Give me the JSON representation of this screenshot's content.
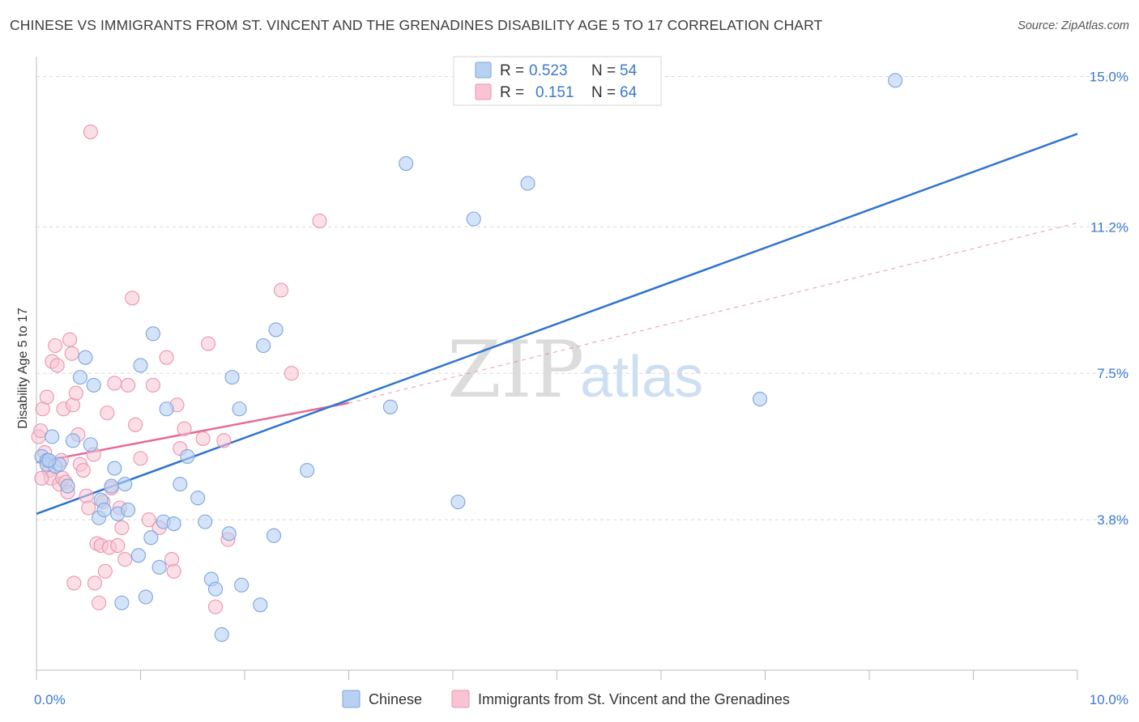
{
  "title": "CHINESE VS IMMIGRANTS FROM ST. VINCENT AND THE GRENADINES DISABILITY AGE 5 TO 17 CORRELATION CHART",
  "source": "Source: ZipAtlas.com",
  "watermark": {
    "zip": "ZIP",
    "atlas": "atlas"
  },
  "colors": {
    "chinese_fill": "#b8d0f2",
    "chinese_stroke": "#7aa6e0",
    "chinese_line": "#2f74d0",
    "svg_fill": "#f8c4d4",
    "svg_stroke": "#ec93ae",
    "svg_line": "#e56b94",
    "tick_label": "#3b78d0",
    "grid": "#d9d9d9"
  },
  "legend": {
    "rows": [
      {
        "r_label": "R =",
        "r_value": "0.523",
        "n_label": "N =",
        "n_value": "54"
      },
      {
        "r_label": "R =",
        "r_value": "0.151",
        "n_label": "N =",
        "n_value": "64"
      }
    ]
  },
  "chart_data": {
    "type": "scatter",
    "title": "CHINESE VS IMMIGRANTS FROM ST. VINCENT AND THE GRENADINES DISABILITY AGE 5 TO 17 CORRELATION CHART",
    "xlabel": "",
    "ylabel": "Disability Age 5 to 17",
    "xlim": [
      0,
      10
    ],
    "ylim": [
      0.0,
      15.5
    ],
    "x_tick_labels": [
      "0.0%",
      "10.0%"
    ],
    "y_ticks": [
      3.8,
      7.5,
      11.2,
      15.0
    ],
    "y_tick_labels": [
      "3.8%",
      "7.5%",
      "11.2%",
      "15.0%"
    ],
    "grid": true,
    "legend_position": "top-center",
    "series": [
      {
        "name": "Chinese",
        "r": 0.523,
        "n": 54,
        "trend": {
          "x": [
            0.0,
            10.0
          ],
          "y": [
            3.95,
            13.55
          ]
        },
        "points": [
          [
            0.05,
            5.4
          ],
          [
            0.1,
            5.3
          ],
          [
            0.1,
            5.2
          ],
          [
            0.15,
            5.9
          ],
          [
            0.18,
            5.15
          ],
          [
            0.22,
            5.2
          ],
          [
            0.3,
            4.65
          ],
          [
            0.35,
            5.8
          ],
          [
            0.42,
            7.4
          ],
          [
            0.47,
            7.9
          ],
          [
            0.52,
            5.7
          ],
          [
            0.55,
            7.2
          ],
          [
            0.6,
            3.85
          ],
          [
            0.62,
            4.3
          ],
          [
            0.65,
            4.05
          ],
          [
            0.72,
            4.65
          ],
          [
            0.75,
            5.1
          ],
          [
            0.78,
            3.95
          ],
          [
            0.82,
            1.7
          ],
          [
            0.85,
            4.7
          ],
          [
            0.88,
            4.05
          ],
          [
            0.98,
            2.9
          ],
          [
            1.0,
            7.7
          ],
          [
            1.05,
            1.85
          ],
          [
            1.1,
            3.35
          ],
          [
            1.12,
            8.5
          ],
          [
            1.18,
            2.6
          ],
          [
            1.22,
            3.75
          ],
          [
            1.25,
            6.6
          ],
          [
            1.32,
            3.7
          ],
          [
            1.38,
            4.7
          ],
          [
            1.45,
            5.4
          ],
          [
            1.55,
            4.35
          ],
          [
            1.62,
            3.75
          ],
          [
            1.68,
            2.3
          ],
          [
            1.72,
            2.05
          ],
          [
            1.78,
            0.9
          ],
          [
            1.85,
            3.45
          ],
          [
            1.88,
            7.4
          ],
          [
            1.95,
            6.6
          ],
          [
            1.97,
            2.15
          ],
          [
            2.15,
            1.65
          ],
          [
            2.18,
            8.2
          ],
          [
            2.28,
            3.4
          ],
          [
            2.3,
            8.6
          ],
          [
            2.6,
            5.05
          ],
          [
            3.4,
            6.65
          ],
          [
            3.55,
            12.8
          ],
          [
            4.2,
            11.4
          ],
          [
            4.05,
            4.25
          ],
          [
            4.72,
            12.3
          ],
          [
            6.95,
            6.85
          ],
          [
            8.25,
            14.9
          ],
          [
            0.12,
            5.3
          ]
        ]
      },
      {
        "name": "Immigrants from St. Vincent and the Grenadines",
        "r": 0.151,
        "n": 64,
        "trend": {
          "x": [
            0.0,
            3.0
          ],
          "y": [
            5.25,
            6.75
          ]
        },
        "trend_extension": {
          "x": [
            3.0,
            10.0
          ],
          "y": [
            6.75,
            11.3
          ]
        },
        "points": [
          [
            0.02,
            5.9
          ],
          [
            0.04,
            6.05
          ],
          [
            0.06,
            6.6
          ],
          [
            0.08,
            5.5
          ],
          [
            0.1,
            6.9
          ],
          [
            0.12,
            5.05
          ],
          [
            0.14,
            4.85
          ],
          [
            0.15,
            7.8
          ],
          [
            0.18,
            8.2
          ],
          [
            0.2,
            7.7
          ],
          [
            0.22,
            4.7
          ],
          [
            0.24,
            5.3
          ],
          [
            0.25,
            4.85
          ],
          [
            0.26,
            6.6
          ],
          [
            0.28,
            4.75
          ],
          [
            0.3,
            4.5
          ],
          [
            0.32,
            8.35
          ],
          [
            0.34,
            8.0
          ],
          [
            0.35,
            6.7
          ],
          [
            0.36,
            2.2
          ],
          [
            0.38,
            7.0
          ],
          [
            0.4,
            5.95
          ],
          [
            0.42,
            5.2
          ],
          [
            0.45,
            5.05
          ],
          [
            0.48,
            4.4
          ],
          [
            0.5,
            4.1
          ],
          [
            0.52,
            13.6
          ],
          [
            0.55,
            5.45
          ],
          [
            0.56,
            2.2
          ],
          [
            0.58,
            3.2
          ],
          [
            0.6,
            1.7
          ],
          [
            0.62,
            3.15
          ],
          [
            0.64,
            4.25
          ],
          [
            0.66,
            2.5
          ],
          [
            0.68,
            6.5
          ],
          [
            0.7,
            3.1
          ],
          [
            0.72,
            4.6
          ],
          [
            0.75,
            7.25
          ],
          [
            0.78,
            3.15
          ],
          [
            0.8,
            4.1
          ],
          [
            0.82,
            3.6
          ],
          [
            0.85,
            2.8
          ],
          [
            0.88,
            7.2
          ],
          [
            0.92,
            9.4
          ],
          [
            0.95,
            6.2
          ],
          [
            1.0,
            5.35
          ],
          [
            1.08,
            3.8
          ],
          [
            1.12,
            7.2
          ],
          [
            1.18,
            3.6
          ],
          [
            1.25,
            7.9
          ],
          [
            1.3,
            2.8
          ],
          [
            1.32,
            2.5
          ],
          [
            1.35,
            6.7
          ],
          [
            1.38,
            5.6
          ],
          [
            1.42,
            6.1
          ],
          [
            1.6,
            5.85
          ],
          [
            1.65,
            8.25
          ],
          [
            1.72,
            1.6
          ],
          [
            1.8,
            5.8
          ],
          [
            1.84,
            3.3
          ],
          [
            2.35,
            9.6
          ],
          [
            2.45,
            7.5
          ],
          [
            2.72,
            11.35
          ],
          [
            0.05,
            4.85
          ]
        ]
      }
    ]
  },
  "bottom_legend": [
    {
      "label": "Chinese"
    },
    {
      "label": "Immigrants from St. Vincent and the Grenadines"
    }
  ]
}
